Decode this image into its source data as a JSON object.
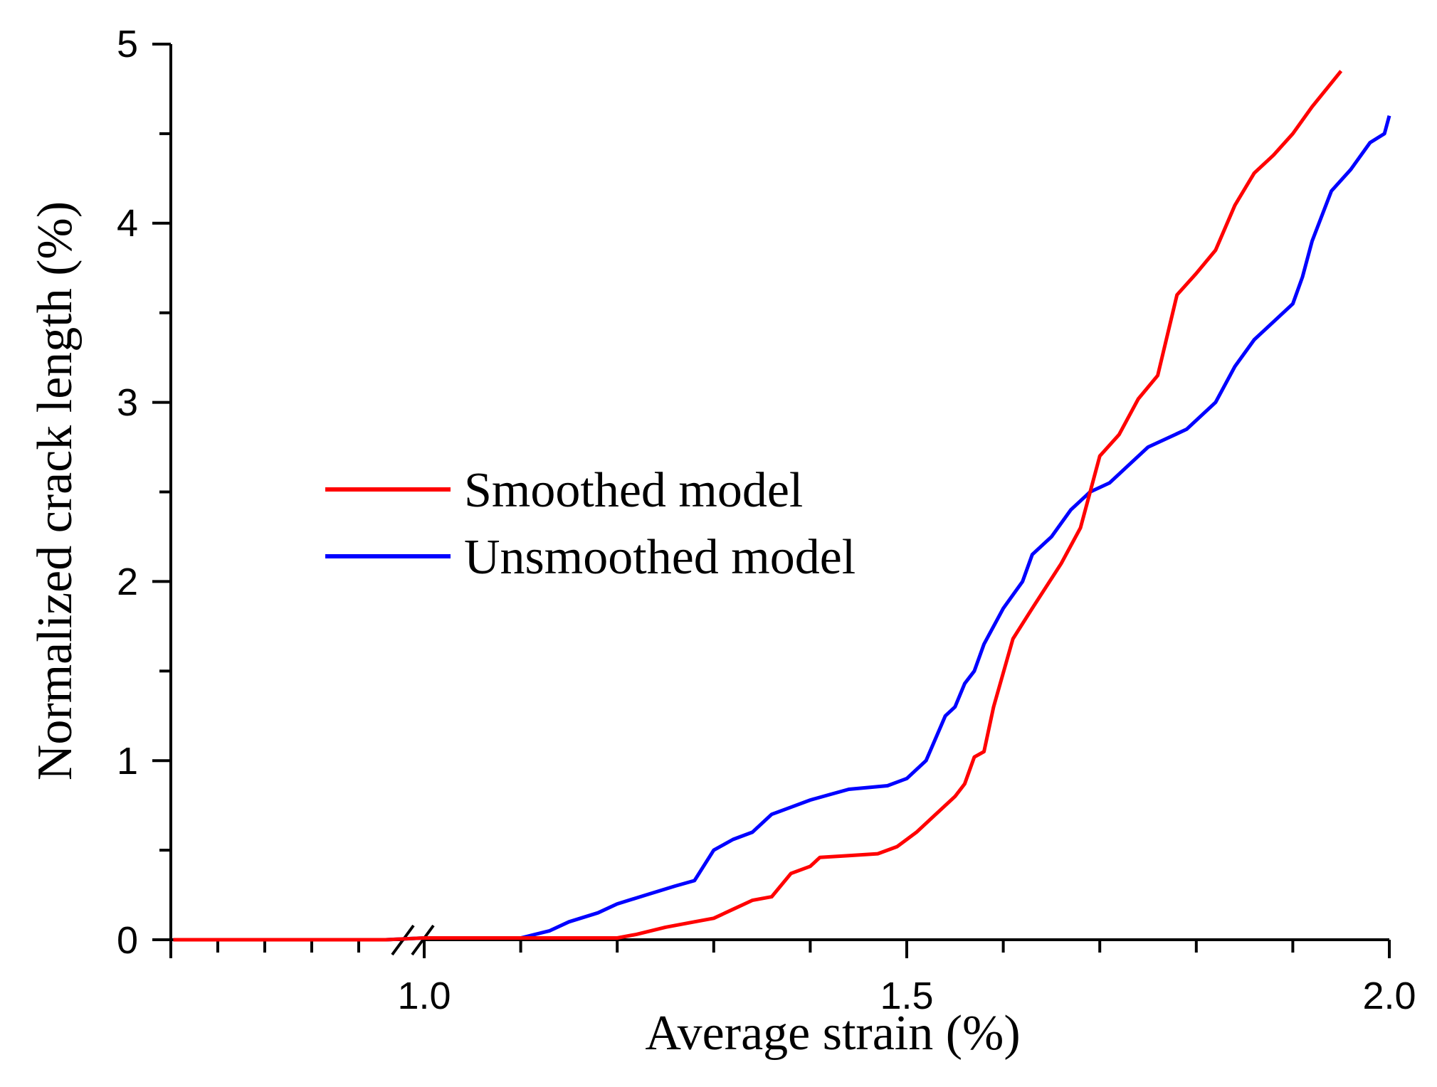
{
  "chart_data": {
    "type": "line",
    "title": "",
    "xlabel": "Average strain (%)",
    "ylabel": "Normalized crack length (%)",
    "x_break": true,
    "x_tick_labels": [
      "1.0",
      "1.5",
      "2.0"
    ],
    "y_tick_labels": [
      "0",
      "1",
      "2",
      "3",
      "4",
      "5"
    ],
    "ylim": [
      0,
      5
    ],
    "legend_position": "center-left",
    "series": [
      {
        "name": "Smoothed model",
        "color": "#ff0000",
        "points": [
          [
            0.74,
            0.0
          ],
          [
            0.96,
            0.0
          ],
          [
            1.0,
            0.01
          ],
          [
            1.2,
            0.01
          ],
          [
            1.22,
            0.03
          ],
          [
            1.25,
            0.07
          ],
          [
            1.28,
            0.1
          ],
          [
            1.3,
            0.12
          ],
          [
            1.32,
            0.17
          ],
          [
            1.34,
            0.22
          ],
          [
            1.36,
            0.24
          ],
          [
            1.38,
            0.37
          ],
          [
            1.4,
            0.41
          ],
          [
            1.41,
            0.46
          ],
          [
            1.44,
            0.47
          ],
          [
            1.47,
            0.48
          ],
          [
            1.49,
            0.52
          ],
          [
            1.51,
            0.6
          ],
          [
            1.53,
            0.7
          ],
          [
            1.55,
            0.8
          ],
          [
            1.56,
            0.87
          ],
          [
            1.57,
            1.02
          ],
          [
            1.58,
            1.05
          ],
          [
            1.59,
            1.3
          ],
          [
            1.61,
            1.68
          ],
          [
            1.63,
            1.85
          ],
          [
            1.66,
            2.1
          ],
          [
            1.68,
            2.3
          ],
          [
            1.7,
            2.7
          ],
          [
            1.72,
            2.82
          ],
          [
            1.74,
            3.02
          ],
          [
            1.76,
            3.15
          ],
          [
            1.78,
            3.6
          ],
          [
            1.8,
            3.72
          ],
          [
            1.82,
            3.85
          ],
          [
            1.84,
            4.1
          ],
          [
            1.86,
            4.28
          ],
          [
            1.88,
            4.38
          ],
          [
            1.9,
            4.5
          ],
          [
            1.92,
            4.65
          ],
          [
            1.95,
            4.85
          ]
        ]
      },
      {
        "name": "Unsmoothed model",
        "color": "#0000ff",
        "points": [
          [
            0.74,
            0.0
          ],
          [
            0.96,
            0.0
          ],
          [
            1.0,
            0.01
          ],
          [
            1.1,
            0.01
          ],
          [
            1.13,
            0.05
          ],
          [
            1.15,
            0.1
          ],
          [
            1.18,
            0.15
          ],
          [
            1.2,
            0.2
          ],
          [
            1.23,
            0.25
          ],
          [
            1.26,
            0.3
          ],
          [
            1.28,
            0.33
          ],
          [
            1.3,
            0.5
          ],
          [
            1.32,
            0.56
          ],
          [
            1.34,
            0.6
          ],
          [
            1.36,
            0.7
          ],
          [
            1.38,
            0.74
          ],
          [
            1.4,
            0.78
          ],
          [
            1.42,
            0.81
          ],
          [
            1.44,
            0.84
          ],
          [
            1.46,
            0.85
          ],
          [
            1.48,
            0.86
          ],
          [
            1.5,
            0.9
          ],
          [
            1.52,
            1.0
          ],
          [
            1.54,
            1.25
          ],
          [
            1.55,
            1.3
          ],
          [
            1.56,
            1.43
          ],
          [
            1.57,
            1.5
          ],
          [
            1.58,
            1.65
          ],
          [
            1.6,
            1.85
          ],
          [
            1.62,
            2.0
          ],
          [
            1.63,
            2.15
          ],
          [
            1.65,
            2.25
          ],
          [
            1.67,
            2.4
          ],
          [
            1.69,
            2.5
          ],
          [
            1.71,
            2.55
          ],
          [
            1.73,
            2.65
          ],
          [
            1.75,
            2.75
          ],
          [
            1.77,
            2.8
          ],
          [
            1.79,
            2.85
          ],
          [
            1.82,
            3.0
          ],
          [
            1.84,
            3.2
          ],
          [
            1.86,
            3.35
          ],
          [
            1.88,
            3.45
          ],
          [
            1.9,
            3.55
          ],
          [
            1.91,
            3.7
          ],
          [
            1.92,
            3.9
          ],
          [
            1.94,
            4.18
          ],
          [
            1.96,
            4.3
          ],
          [
            1.98,
            4.45
          ],
          [
            1.995,
            4.5
          ],
          [
            2.0,
            4.6
          ]
        ]
      }
    ]
  }
}
